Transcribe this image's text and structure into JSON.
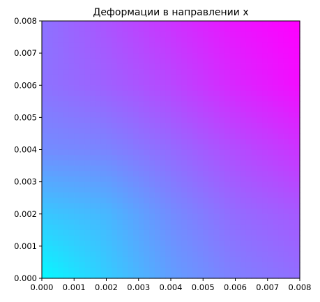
{
  "chart_data": {
    "type": "heatmap",
    "title": "Деформации в направлении x",
    "xlabel": "",
    "ylabel": "",
    "xlim": [
      0,
      0.008
    ],
    "ylim": [
      0,
      0.008
    ],
    "x_ticks": [
      "0.000",
      "0.001",
      "0.002",
      "0.003",
      "0.004",
      "0.005",
      "0.006",
      "0.007",
      "0.008"
    ],
    "y_ticks": [
      "0.000",
      "0.001",
      "0.002",
      "0.003",
      "0.004",
      "0.005",
      "0.006",
      "0.007",
      "0.008"
    ],
    "colormap": "cool",
    "colormap_colors": [
      "#00ffff",
      "#ff00ff"
    ],
    "grid": false,
    "field_description_values": {
      "grid_x": [
        0,
        0.002,
        0.004,
        0.006,
        0.008
      ],
      "grid_y": [
        0,
        0.002,
        0.004,
        0.006,
        0.008
      ],
      "z_normalized": [
        [
          0.02,
          0.2,
          0.38,
          0.5,
          0.57
        ],
        [
          0.22,
          0.28,
          0.45,
          0.58,
          0.65
        ],
        [
          0.45,
          0.48,
          0.58,
          0.7,
          0.8
        ],
        [
          0.55,
          0.62,
          0.72,
          0.85,
          0.95
        ],
        [
          0.55,
          0.67,
          0.8,
          0.92,
          1.0
        ]
      ]
    }
  }
}
